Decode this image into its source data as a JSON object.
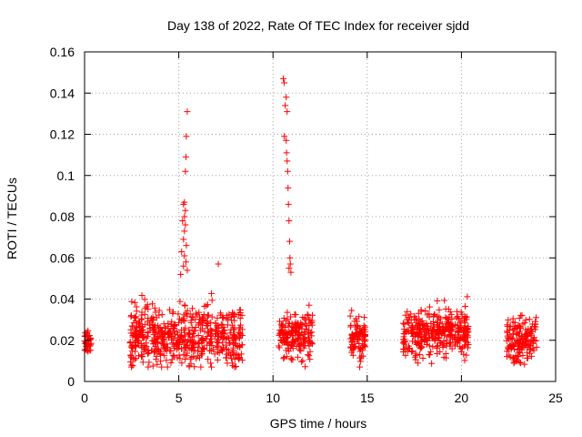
{
  "chart_data": {
    "type": "scatter",
    "title": "Day 138 of 2022, Rate Of TEC Index for receiver sjdd",
    "xlabel": "GPS time / hours",
    "ylabel": "ROTI / TECUs",
    "xlim": [
      0,
      25
    ],
    "ylim": [
      0,
      0.16
    ],
    "xticks": [
      0,
      5,
      10,
      15,
      20,
      25
    ],
    "xtick_labels": [
      "0",
      "5",
      "10",
      "15",
      "20",
      "25"
    ],
    "yticks": [
      0,
      0.02,
      0.04,
      0.06,
      0.08,
      0.1,
      0.12,
      0.14,
      0.16
    ],
    "ytick_labels": [
      "0",
      "0.02",
      "0.04",
      "0.06",
      "0.08",
      "0.1",
      "0.12",
      "0.14",
      "0.16"
    ],
    "grid": true,
    "marker": "+",
    "marker_color": "#ff0000",
    "series": [
      {
        "name": "ROTI",
        "clusters": [
          {
            "x_range": [
              0.0,
              0.35
            ],
            "y_range": [
              0.01,
              0.03
            ],
            "y_center": 0.02,
            "count": 40
          },
          {
            "x_range": [
              2.4,
              8.4
            ],
            "y_range": [
              0.007,
              0.05
            ],
            "y_center": 0.022,
            "count": 600
          },
          {
            "x_range": [
              10.3,
              12.1
            ],
            "y_range": [
              0.006,
              0.044
            ],
            "y_center": 0.022,
            "count": 180
          },
          {
            "x_range": [
              14.1,
              14.9
            ],
            "y_range": [
              0.007,
              0.04
            ],
            "y_center": 0.021,
            "count": 90
          },
          {
            "x_range": [
              16.9,
              20.4
            ],
            "y_range": [
              0.007,
              0.044
            ],
            "y_center": 0.024,
            "count": 360
          },
          {
            "x_range": [
              22.4,
              24.0
            ],
            "y_range": [
              0.008,
              0.043
            ],
            "y_center": 0.021,
            "count": 160
          }
        ],
        "points": [
          [
            5.45,
            0.131
          ],
          [
            5.4,
            0.119
          ],
          [
            5.38,
            0.109
          ],
          [
            5.35,
            0.102
          ],
          [
            5.3,
            0.087
          ],
          [
            5.25,
            0.086
          ],
          [
            5.35,
            0.083
          ],
          [
            5.3,
            0.08
          ],
          [
            5.2,
            0.078
          ],
          [
            5.35,
            0.076
          ],
          [
            5.3,
            0.073
          ],
          [
            5.25,
            0.069
          ],
          [
            5.4,
            0.066
          ],
          [
            5.15,
            0.063
          ],
          [
            5.3,
            0.061
          ],
          [
            5.38,
            0.058
          ],
          [
            5.25,
            0.056
          ],
          [
            5.45,
            0.054
          ],
          [
            5.1,
            0.052
          ],
          [
            7.1,
            0.057
          ],
          [
            10.55,
            0.147
          ],
          [
            10.6,
            0.145
          ],
          [
            10.7,
            0.138
          ],
          [
            10.65,
            0.134
          ],
          [
            10.75,
            0.131
          ],
          [
            10.6,
            0.119
          ],
          [
            10.7,
            0.117
          ],
          [
            10.72,
            0.111
          ],
          [
            10.75,
            0.107
          ],
          [
            10.78,
            0.102
          ],
          [
            10.8,
            0.094
          ],
          [
            10.82,
            0.086
          ],
          [
            10.85,
            0.078
          ],
          [
            10.88,
            0.068
          ],
          [
            10.9,
            0.06
          ],
          [
            10.92,
            0.057
          ],
          [
            10.85,
            0.055
          ],
          [
            10.95,
            0.053
          ]
        ]
      }
    ]
  }
}
